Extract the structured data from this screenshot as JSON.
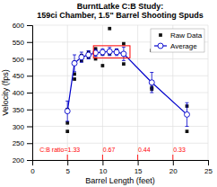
{
  "chart_data": {
    "type": "scatter",
    "title": "BurntLatke C:B Study:\n159ci Chamber, 1.5\" Barrel Shooting Spuds",
    "x_label": "Barrel Length (feet)",
    "y_label": "Velocity (fps)",
    "xlim": [
      0,
      25
    ],
    "ylim": [
      200,
      600
    ],
    "xticks": [
      0,
      5,
      10,
      15,
      20,
      25
    ],
    "yticks": [
      200,
      250,
      300,
      350,
      400,
      450,
      500,
      550,
      600
    ],
    "grid": true,
    "legend": "upper right",
    "series": [
      {
        "name": "Raw Data",
        "type": "scatter",
        "color": "#111111",
        "marker": "square",
        "x": [
          5,
          5,
          5,
          6,
          6,
          6,
          7,
          7,
          7,
          8,
          8,
          8,
          9,
          9,
          10,
          10,
          10,
          11,
          11,
          11,
          12,
          12,
          13,
          13,
          17,
          17,
          17,
          22,
          22,
          22
        ],
        "values": [
          285,
          350,
          310,
          455,
          440,
          490,
          505,
          495,
          510,
          510,
          505,
          520,
          500,
          530,
          515,
          480,
          520,
          590,
          520,
          515,
          520,
          525,
          485,
          545,
          415,
          525,
          410,
          360,
          285,
          335
        ]
      },
      {
        "name": "Average",
        "type": "line",
        "color": "#0000cc",
        "marker": "circle",
        "x": [
          5,
          6,
          7,
          8,
          9,
          10,
          11,
          12,
          13,
          17,
          22
        ],
        "values": [
          345,
          487,
          505,
          512,
          518,
          520,
          522,
          520,
          515,
          430,
          335
        ],
        "errors": [
          30,
          25,
          15,
          12,
          10,
          10,
          12,
          10,
          20,
          30,
          35
        ]
      }
    ],
    "highlight": {
      "x": 8.7,
      "y": 503,
      "width": 5.2,
      "height": 36,
      "color": "red"
    },
    "annotations": [
      {
        "x": 5,
        "text": "C:B ratio=1.33",
        "color": "red"
      },
      {
        "x": 10,
        "text": "0.67",
        "color": "red"
      },
      {
        "x": 15,
        "text": "0.44",
        "color": "red"
      },
      {
        "x": 20,
        "text": "0.33",
        "color": "red"
      }
    ]
  }
}
